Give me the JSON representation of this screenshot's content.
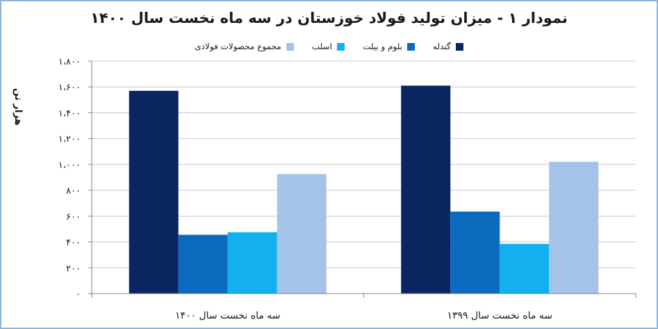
{
  "chart_data": {
    "type": "bar",
    "title": "نمودار ۱ - میزان تولید فولاد خوزستان در سه ماه نخست سال ۱۴۰۰",
    "ylabel": "هزار تن",
    "xlabel": "",
    "ylim": [
      0,
      1800
    ],
    "yticks": [
      0,
      200,
      400,
      600,
      800,
      1000,
      1200,
      1400,
      1600,
      1800
    ],
    "ytick_labels": [
      "۰",
      "۲۰۰",
      "۴۰۰",
      "۶۰۰",
      "۸۰۰",
      "۱،۰۰۰",
      "۱،۲۰۰",
      "۱،۴۰۰",
      "۱،۶۰۰",
      "۱،۸۰۰"
    ],
    "grid": true,
    "legend_position": "top",
    "categories": [
      "سه ماه نخست سال ۱۴۰۰",
      "سه ماه نخست سال ۱۳۹۹"
    ],
    "series": [
      {
        "name": "گندله",
        "color": "#0b2561",
        "values": [
          1570,
          1610
        ]
      },
      {
        "name": "بلوم و بیلت",
        "color": "#0a6bbf",
        "values": [
          455,
          635
        ]
      },
      {
        "name": "اسلب",
        "color": "#12b0ef",
        "values": [
          475,
          385
        ]
      },
      {
        "name": "مجموع محصولات فولادی",
        "color": "#a3c4e8",
        "values": [
          925,
          1020
        ]
      }
    ]
  }
}
